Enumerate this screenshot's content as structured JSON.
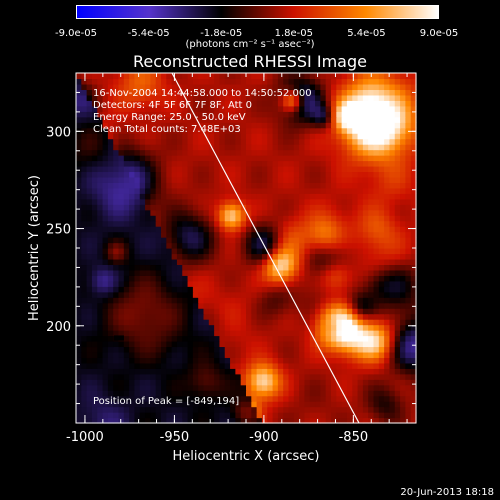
{
  "colorbar": {
    "ticks": [
      "-9.0e-05",
      "-5.4e-05",
      "-1.8e-05",
      "1.8e-05",
      "5.4e-05",
      "9.0e-05"
    ],
    "units": "(photons cm⁻² s⁻¹ asec⁻²)"
  },
  "chart_data": {
    "type": "heatmap",
    "title": "Reconstructed RHESSI Image",
    "xlabel": "Heliocentric X (arcsec)",
    "ylabel": "Heliocentric Y (arcsec)",
    "xlim": [
      -1005,
      -815
    ],
    "ylim": [
      150,
      330
    ],
    "x_ticks": [
      "-1000",
      "-950",
      "-900",
      "-850"
    ],
    "y_ticks": [
      "200",
      "250",
      "300"
    ],
    "colorbar_range": [
      -9e-05,
      9e-05
    ],
    "color_table": [
      "#0000ff",
      "#5533cc",
      "#000000",
      "#cc1100",
      "#ff8800",
      "#ffffff"
    ],
    "peak": [
      -849,
      194
    ],
    "annotations": [
      "16-Nov-2004 14:44:58.000 to 14:50:52.000",
      "Detectors: 4F 5F 6F 7F 8F, Att 0",
      "Energy Range: 25.0 - 50.0 keV",
      "Clean     Total counts: 7.48E+03"
    ],
    "peak_label": "Position of Peak = [-849,194]",
    "grid": false
  },
  "footer": {
    "date": "20-Jun-2013 18:18"
  }
}
